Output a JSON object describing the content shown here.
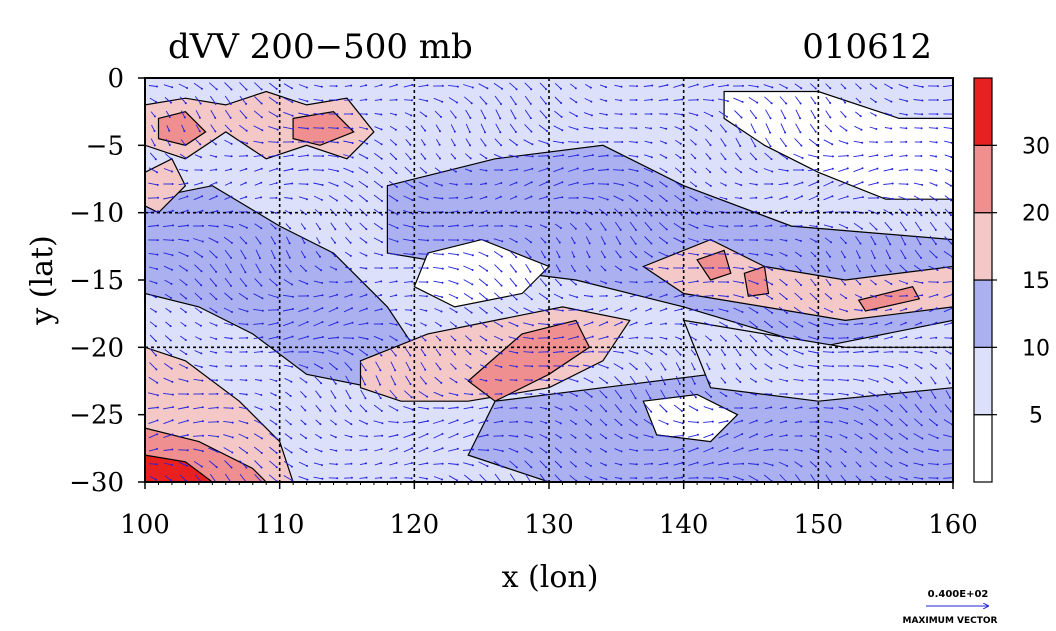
{
  "chart_data": {
    "type": "heatmap",
    "title": "dVV 200−500 mb",
    "date_label": "010612",
    "xlabel": "x (lon)",
    "ylabel": "y (lat)",
    "xlim": [
      100,
      160
    ],
    "ylim": [
      -30,
      0
    ],
    "x_ticks": [
      100,
      110,
      120,
      130,
      140,
      150,
      160
    ],
    "y_ticks": [
      0,
      -5,
      -10,
      -15,
      -20,
      -25,
      -30
    ],
    "x_tick_labels": [
      "100",
      "110",
      "120",
      "130",
      "140",
      "150",
      "160"
    ],
    "y_tick_labels": [
      "0",
      "−5",
      "−10",
      "−15",
      "−20",
      "−25",
      "−30"
    ],
    "grid": "dashed at every 10° lon and 5° lat",
    "colorbar": {
      "levels": [
        0,
        5,
        10,
        15,
        20,
        30,
        35
      ],
      "labels": [
        "5",
        "10",
        "15",
        "20",
        "30"
      ],
      "colors": [
        "#ffffff",
        "#dde0fb",
        "#aab0f0",
        "#f5c8c8",
        "#f08f8f",
        "#e82020"
      ]
    },
    "field_regions": [
      {
        "name": "west-band",
        "level_class": 2,
        "path": [
          [
            100,
            -9
          ],
          [
            105,
            -8
          ],
          [
            110,
            -11
          ],
          [
            114,
            -13
          ],
          [
            118,
            -17
          ],
          [
            120,
            -20
          ],
          [
            117,
            -23
          ],
          [
            112,
            -22
          ],
          [
            108,
            -19
          ],
          [
            104,
            -17
          ],
          [
            100,
            -16
          ]
        ]
      },
      {
        "name": "north-west-pink",
        "level_class": 3,
        "path": [
          [
            100,
            -2
          ],
          [
            103,
            -1.5
          ],
          [
            106,
            -2
          ],
          [
            109,
            -1
          ],
          [
            112,
            -2
          ],
          [
            115,
            -1.5
          ],
          [
            117,
            -4
          ],
          [
            115,
            -6
          ],
          [
            112,
            -5
          ],
          [
            109,
            -6
          ],
          [
            106,
            -4
          ],
          [
            103,
            -6
          ],
          [
            100,
            -5
          ]
        ]
      },
      {
        "name": "north-west-core",
        "level_class": 4,
        "path": [
          [
            101,
            -3
          ],
          [
            103,
            -2.5
          ],
          [
            104.5,
            -4
          ],
          [
            103,
            -5
          ],
          [
            101,
            -4.5
          ]
        ]
      },
      {
        "name": "north-core-2",
        "level_class": 4,
        "path": [
          [
            111,
            -3
          ],
          [
            114,
            -2.5
          ],
          [
            115.5,
            -4
          ],
          [
            113,
            -5
          ],
          [
            111,
            -4.5
          ]
        ]
      },
      {
        "name": "west-pink-2",
        "level_class": 3,
        "path": [
          [
            100,
            -7
          ],
          [
            102,
            -6
          ],
          [
            103,
            -8
          ],
          [
            101,
            -10
          ],
          [
            100,
            -9.5
          ]
        ]
      },
      {
        "name": "center-blue",
        "level_class": 2,
        "path": [
          [
            118,
            -8
          ],
          [
            126,
            -6
          ],
          [
            134,
            -5
          ],
          [
            140,
            -8
          ],
          [
            148,
            -11
          ],
          [
            160,
            -12
          ],
          [
            160,
            -18
          ],
          [
            150,
            -20
          ],
          [
            140,
            -17
          ],
          [
            132,
            -15
          ],
          [
            124,
            -14
          ],
          [
            118,
            -13
          ]
        ]
      },
      {
        "name": "center-pink-ridge",
        "level_class": 3,
        "path": [
          [
            116,
            -21
          ],
          [
            121,
            -19
          ],
          [
            126,
            -18
          ],
          [
            131,
            -17
          ],
          [
            136,
            -18
          ],
          [
            134,
            -21
          ],
          [
            130,
            -23
          ],
          [
            124,
            -24
          ],
          [
            119,
            -24
          ],
          [
            116,
            -23
          ]
        ]
      },
      {
        "name": "center-core",
        "level_class": 4,
        "path": [
          [
            124,
            -22.5
          ],
          [
            128,
            -19
          ],
          [
            132,
            -18
          ],
          [
            133,
            -20
          ],
          [
            130,
            -22
          ],
          [
            126,
            -24
          ]
        ]
      },
      {
        "name": "east-pink-band",
        "level_class": 3,
        "path": [
          [
            137,
            -14
          ],
          [
            142,
            -12
          ],
          [
            146,
            -14
          ],
          [
            152,
            -15
          ],
          [
            160,
            -14
          ],
          [
            160,
            -17
          ],
          [
            152,
            -18
          ],
          [
            146,
            -17
          ],
          [
            140,
            -16
          ]
        ]
      },
      {
        "name": "east-core-1",
        "level_class": 4,
        "path": [
          [
            141,
            -13.5
          ],
          [
            143,
            -12.8
          ],
          [
            143.5,
            -14.5
          ],
          [
            142,
            -15
          ]
        ]
      },
      {
        "name": "east-core-2",
        "level_class": 4,
        "path": [
          [
            144.5,
            -14.5
          ],
          [
            146,
            -14
          ],
          [
            146.3,
            -16
          ],
          [
            144.8,
            -16.2
          ]
        ]
      },
      {
        "name": "east-core-3",
        "level_class": 4,
        "path": [
          [
            153,
            -16.5
          ],
          [
            157,
            -15.5
          ],
          [
            157.5,
            -16.4
          ],
          [
            153.5,
            -17.3
          ]
        ]
      },
      {
        "name": "north-east-white",
        "level_class": 0,
        "path": [
          [
            143,
            -1
          ],
          [
            150,
            -1
          ],
          [
            156,
            -3
          ],
          [
            160,
            -3
          ],
          [
            160,
            -9
          ],
          [
            155,
            -9
          ],
          [
            150,
            -7
          ],
          [
            146,
            -5
          ],
          [
            143,
            -3
          ]
        ]
      },
      {
        "name": "center-white-1",
        "level_class": 0,
        "path": [
          [
            121,
            -13
          ],
          [
            125,
            -12
          ],
          [
            130,
            -14
          ],
          [
            128,
            -16
          ],
          [
            123,
            -17
          ],
          [
            120,
            -15.5
          ]
        ]
      },
      {
        "name": "south-west-pink",
        "level_class": 3,
        "path": [
          [
            100,
            -20
          ],
          [
            103,
            -21
          ],
          [
            107,
            -24
          ],
          [
            110,
            -27
          ],
          [
            111,
            -30
          ],
          [
            100,
            -30
          ]
        ]
      },
      {
        "name": "south-west-core",
        "level_class": 4,
        "path": [
          [
            100,
            -26
          ],
          [
            104,
            -27
          ],
          [
            108,
            -29
          ],
          [
            109,
            -30
          ],
          [
            100,
            -30
          ]
        ]
      },
      {
        "name": "south-west-max",
        "level_class": 5,
        "path": [
          [
            100,
            -28
          ],
          [
            103,
            -28.5
          ],
          [
            105,
            -30
          ],
          [
            100,
            -30
          ]
        ]
      },
      {
        "name": "south-blue",
        "level_class": 2,
        "path": [
          [
            126,
            -24
          ],
          [
            134,
            -23
          ],
          [
            142,
            -22
          ],
          [
            150,
            -21
          ],
          [
            160,
            -22
          ],
          [
            160,
            -30
          ],
          [
            130,
            -30
          ],
          [
            124,
            -28
          ]
        ]
      },
      {
        "name": "south-white",
        "level_class": 0,
        "path": [
          [
            137,
            -24
          ],
          [
            141,
            -23.5
          ],
          [
            144,
            -25
          ],
          [
            142,
            -27
          ],
          [
            138,
            -26.5
          ]
        ]
      },
      {
        "name": "south-east-light",
        "level_class": 1,
        "path": [
          [
            140,
            -18
          ],
          [
            146,
            -19
          ],
          [
            152,
            -20
          ],
          [
            160,
            -20
          ],
          [
            160,
            -23
          ],
          [
            150,
            -24
          ],
          [
            142,
            -23
          ]
        ]
      }
    ],
    "vector_key": {
      "value": "0.400E+02",
      "label": "MAXIMUM VECTOR"
    }
  }
}
